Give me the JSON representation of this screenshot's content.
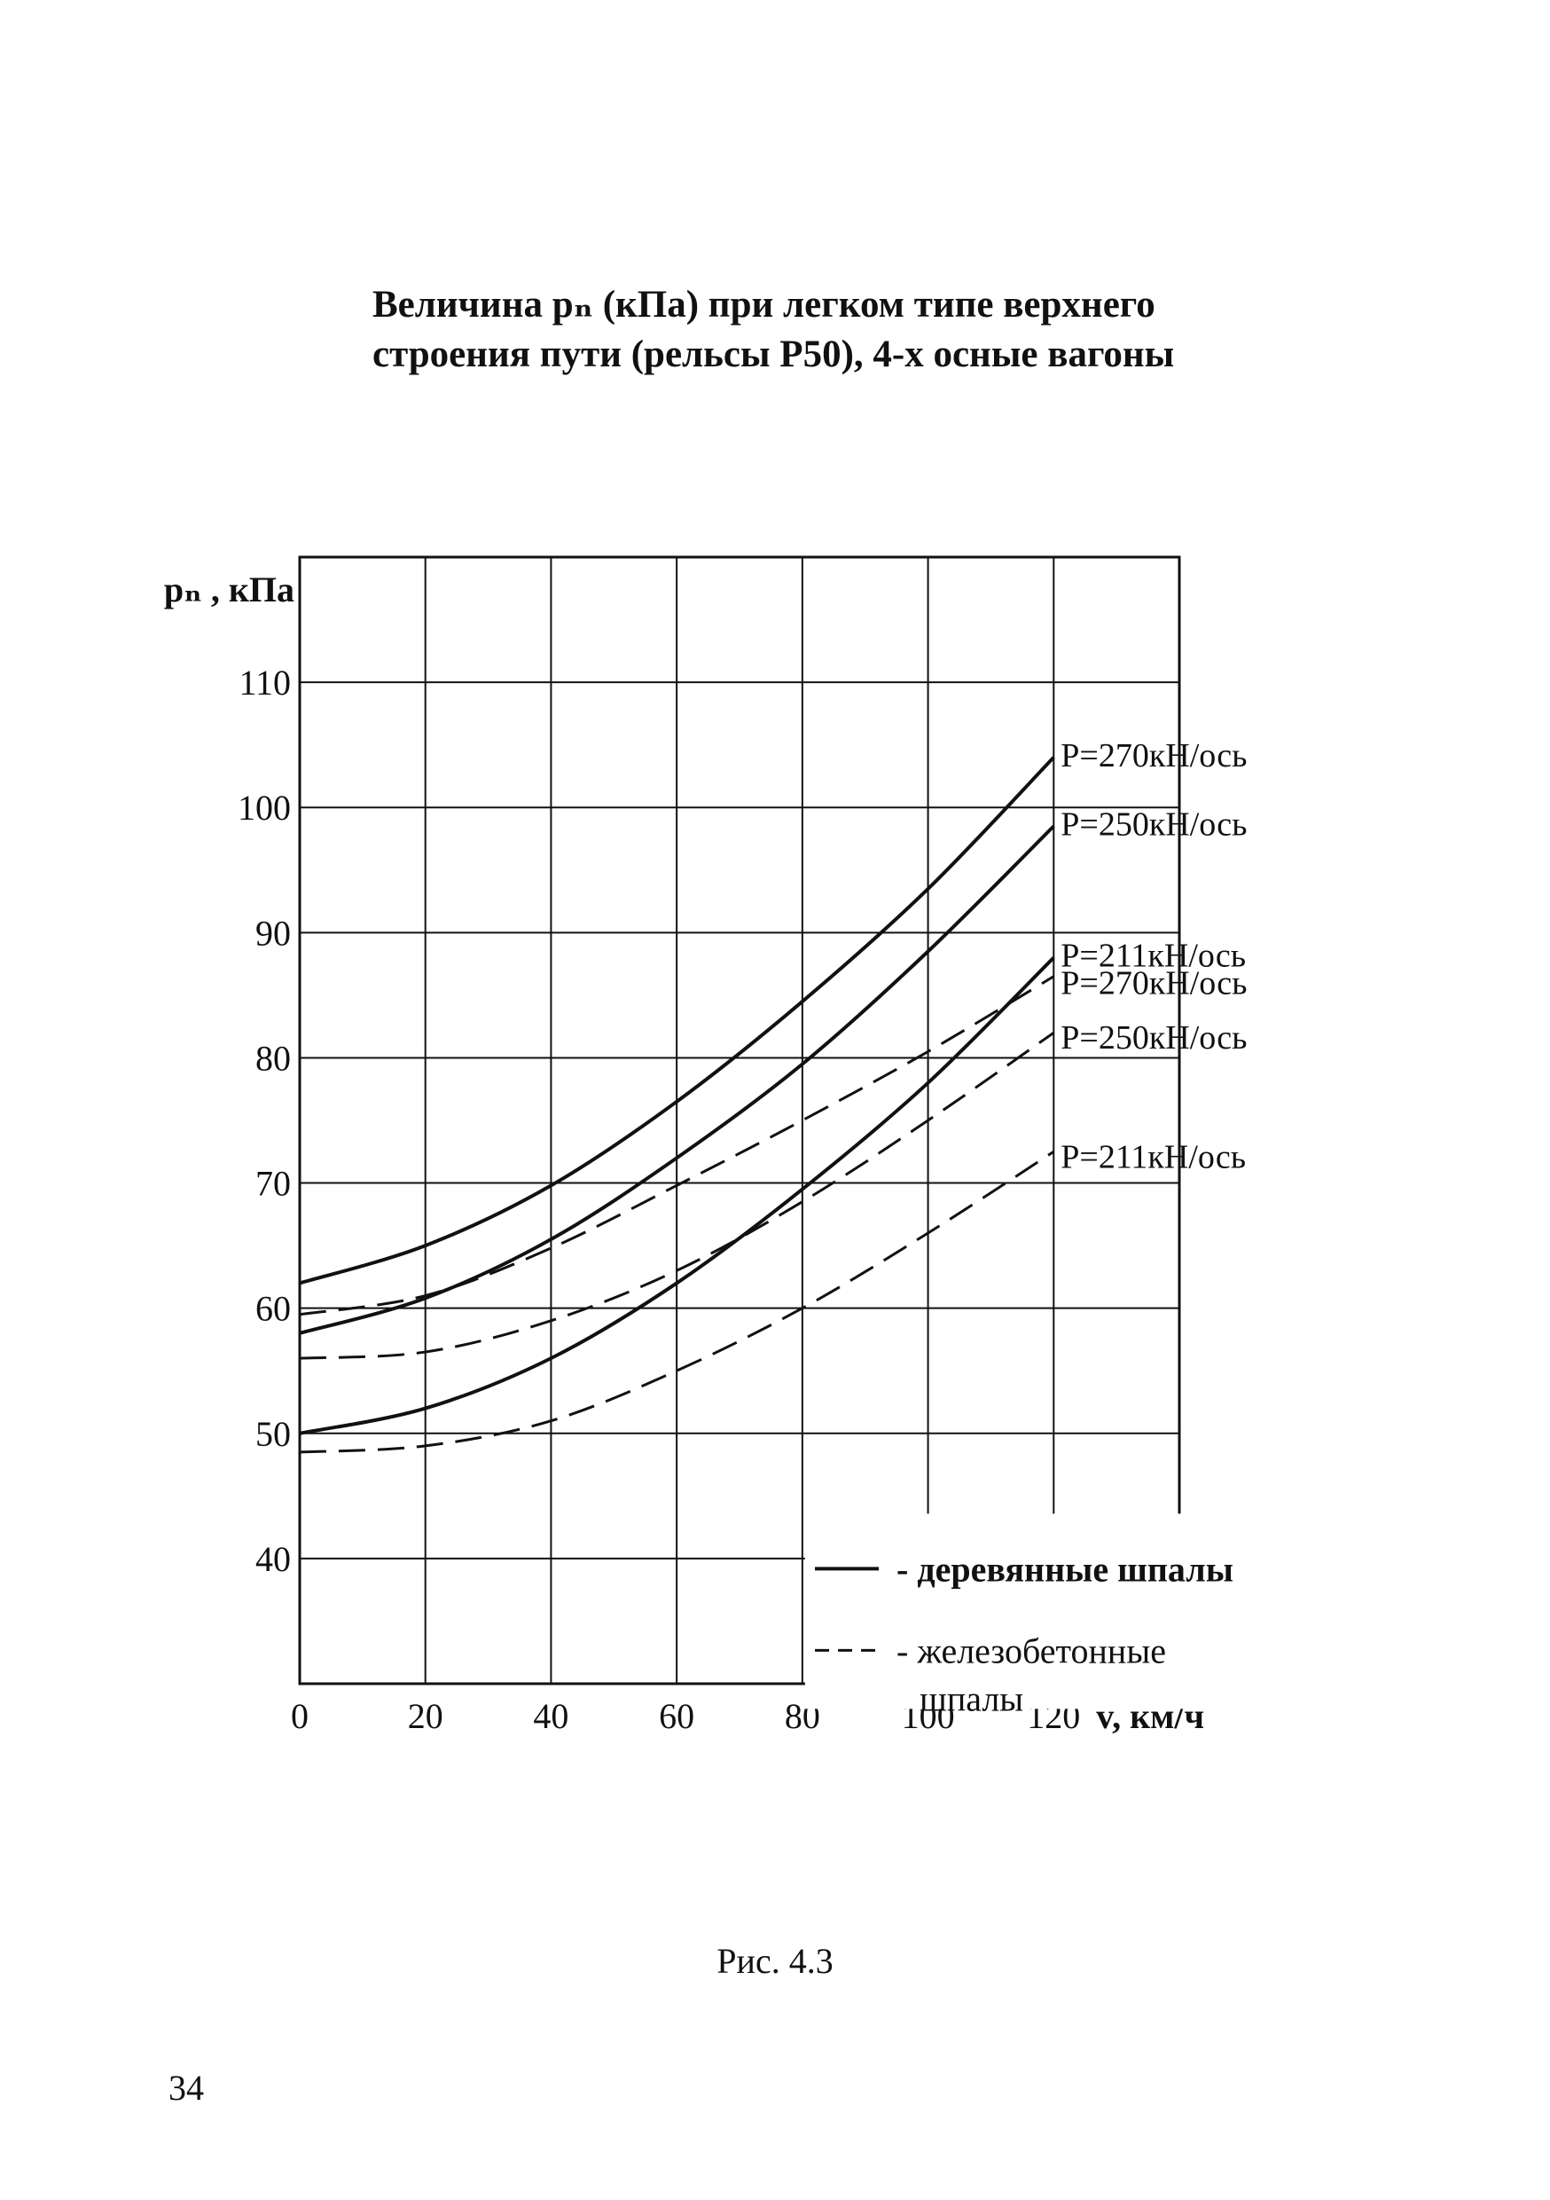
{
  "title": {
    "line1": "Величина  pₙ (кПа) при легком типе верхнего",
    "line2": "строения пути (рельсы Р50), 4-х осные вагоны"
  },
  "caption": "Рис. 4.3",
  "page_number": "34",
  "chart_data": {
    "type": "line",
    "title": "Величина pₙ (кПа) при легком типе верхнего строения пути (рельсы Р50), 4-х осные вагоны",
    "xlabel": "v, км/ч",
    "ylabel": "pₙ , кПа",
    "xlim": [
      0,
      140
    ],
    "ylim": [
      30,
      120
    ],
    "x_ticks": [
      0,
      20,
      40,
      60,
      80,
      100,
      120
    ],
    "y_ticks": [
      40,
      50,
      60,
      70,
      80,
      90,
      100,
      110
    ],
    "x_tick_labels": [
      "0",
      "20",
      "40",
      "60",
      "80",
      "100",
      "120"
    ],
    "y_tick_labels": [
      "40",
      "50",
      "60",
      "70",
      "80",
      "90",
      "100",
      "110"
    ],
    "grid": true,
    "x": [
      0,
      20,
      40,
      60,
      80,
      100,
      120
    ],
    "series": [
      {
        "name": "P=270кН/ось",
        "style": "solid",
        "values": [
          62,
          65,
          69.8,
          76.5,
          84.5,
          93.5,
          104
        ]
      },
      {
        "name": "P=250кН/ось",
        "style": "solid",
        "values": [
          58,
          60.8,
          65.5,
          72,
          79.5,
          88.5,
          98.5
        ]
      },
      {
        "name": "P=211кН/ось",
        "style": "solid",
        "values": [
          50,
          52,
          56,
          62,
          69.5,
          78,
          88
        ]
      },
      {
        "name": "P=270кН/ось",
        "style": "dashed",
        "values": [
          59.5,
          61,
          64.8,
          69.8,
          75,
          80.5,
          86.5
        ]
      },
      {
        "name": "P=250кН/ось",
        "style": "dashed",
        "values": [
          56,
          56.5,
          59,
          63,
          68.5,
          75,
          82
        ]
      },
      {
        "name": "P=211кН/ось",
        "style": "dashed",
        "values": [
          48.5,
          49,
          51,
          55,
          60,
          66,
          72.5
        ]
      }
    ],
    "legend": {
      "placement": "bottom-right",
      "items": [
        {
          "style": "solid",
          "label": "- деревянные шпалы"
        },
        {
          "style": "dashed",
          "label": "- железобетонные",
          "label2": "шпалы"
        }
      ]
    }
  }
}
